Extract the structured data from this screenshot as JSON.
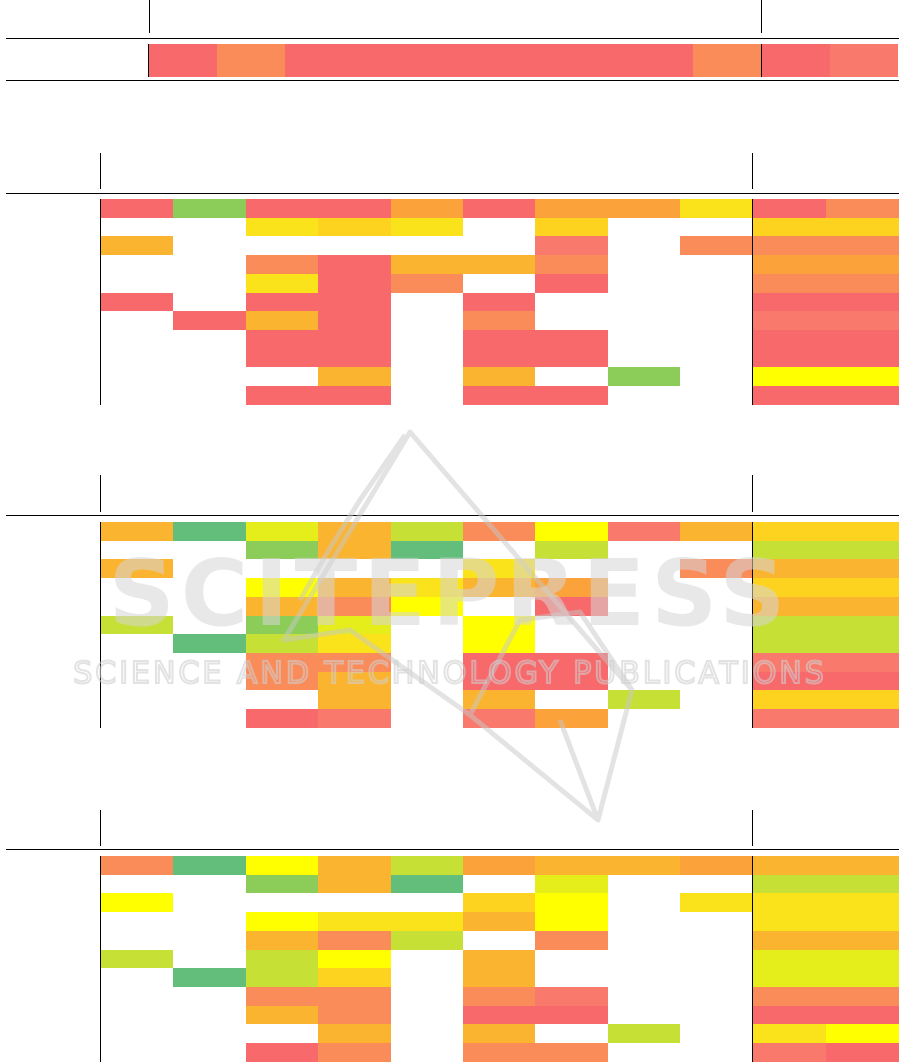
{
  "palette": {
    "R": "#f8696b",
    "r": "#f97a6c",
    "o": "#fa8c5a",
    "O": "#fba23b",
    "A": "#fbb42f",
    "y": "#fdd320",
    "Y": "#fbe31b",
    "L": "#ffff00",
    "l": "#e5ee1a",
    "g": "#c7e035",
    "G": "#8ccd5a",
    "D": "#63be7b",
    "w": "#ffffff"
  },
  "tables": [
    {
      "name": "top-table",
      "rows": [
        "RoRRRRRRoo|Rr"
      ]
    },
    {
      "name": "table-1",
      "rows": [
        "RGRROROOY|Ro",
        "wwYyYwywww|yy",
        "Awwwwwrwo|oo",
        "wwoRAAowww|OO",
        "wwYRowRww|oo",
        "RwRRwRwww|RR",
        "wRARwowww|rr",
        "wwRRwRRww|RR",
        "wwRRwRRww|RR",
        "wwwAwAwGw|LL",
        "wwRRwRRww|RR"
      ]
    },
    {
      "name": "table-2",
      "rows": [
        "ADlAgoLrA|yy",
        "wwGADwgww|gg",
        "AwwwwYwwo|AA",
        "wwLAYAOww|yy",
        "wwAoLwRww|AA",
        "gwGlwLwww|gg",
        "wDgYwLwww|gg",
        "wwoowRRww|rr",
        "wwoAwRRww|RR",
        "wwwAwAwgw|yy",
        "wwRrwrOww|rr"
      ]
    },
    {
      "name": "table-3",
      "rows": [
        "oDLAgOAAO|AA",
        "wwGADwlww|gg",
        "LwwwwyLwY|YY",
        "wwLYYALww|YY",
        "wwAogwoww|AA",
        "gwgLwAwww|ll",
        "wDgywAwww|ll",
        "wwooworww|oo",
        "wwAowRRww|RR",
        "wwwAwAwgw|YL",
        "wwRowooww|rR"
      ]
    }
  ]
}
